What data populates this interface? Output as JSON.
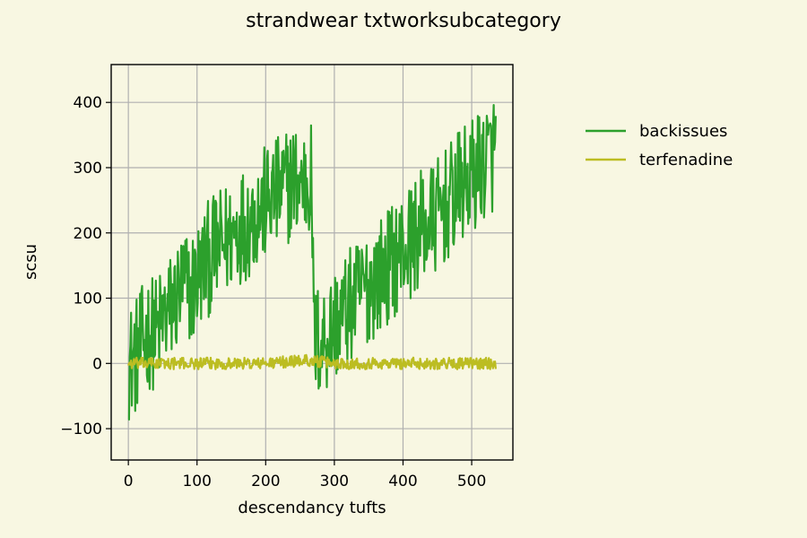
{
  "chart_data": {
    "type": "line",
    "title": "strandwear txtworksubcategory",
    "xlabel": "descendancy tufts",
    "ylabel": "scsu",
    "xlim": [
      -25,
      560
    ],
    "ylim": [
      -148,
      458
    ],
    "xticks": [
      0,
      100,
      200,
      300,
      400,
      500
    ],
    "yticks": [
      -100,
      0,
      100,
      200,
      300,
      400
    ],
    "xtick_labels": [
      "0",
      "100",
      "200",
      "300",
      "400",
      "500"
    ],
    "ytick_labels": [
      "−100",
      "0",
      "100",
      "200",
      "300",
      "400"
    ],
    "grid": true,
    "legend_position": "right, outside plot",
    "series": [
      {
        "name": "backissues",
        "color": "#2ca02c",
        "x": [
          0,
          10,
          20,
          30,
          40,
          50,
          60,
          70,
          80,
          90,
          100,
          110,
          120,
          130,
          140,
          150,
          160,
          170,
          180,
          190,
          200,
          210,
          220,
          230,
          240,
          250,
          260,
          267,
          270,
          280,
          290,
          300,
          310,
          320,
          330,
          340,
          350,
          360,
          370,
          380,
          390,
          400,
          410,
          420,
          430,
          440,
          450,
          460,
          470,
          480,
          490,
          500,
          510,
          520,
          530,
          535
        ],
        "center": [
          0,
          10,
          30,
          50,
          45,
          65,
          80,
          100,
          120,
          110,
          130,
          150,
          165,
          175,
          185,
          195,
          210,
          215,
          225,
          235,
          245,
          255,
          260,
          270,
          280,
          275,
          280,
          285,
          40,
          30,
          45,
          60,
          70,
          85,
          95,
          110,
          120,
          130,
          140,
          150,
          165,
          175,
          185,
          200,
          210,
          215,
          225,
          240,
          250,
          265,
          275,
          285,
          300,
          310,
          320,
          330
        ],
        "amplitude": 90
      },
      {
        "name": "terfenadine",
        "color": "#bcbd22",
        "x": [
          0,
          100,
          200,
          260,
          300,
          400,
          535
        ],
        "center": [
          0,
          0,
          0,
          5,
          0,
          0,
          0
        ],
        "amplitude": 9
      }
    ]
  }
}
